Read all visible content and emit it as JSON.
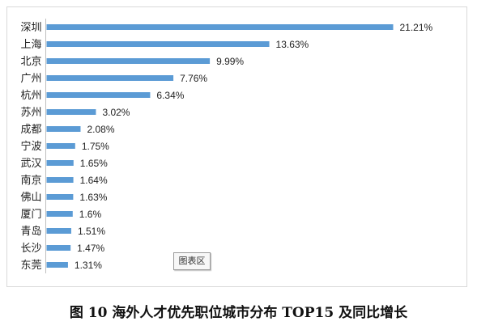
{
  "chart_area_label": "图表区",
  "caption": "图 10   海外人才优先职位城市分布 TOP15 及同比增长",
  "chart_data": {
    "type": "bar",
    "orientation": "horizontal",
    "categories": [
      "深圳",
      "上海",
      "北京",
      "广州",
      "杭州",
      "苏州",
      "成都",
      "宁波",
      "武汉",
      "南京",
      "佛山",
      "厦门",
      "青岛",
      "长沙",
      "东莞"
    ],
    "values": [
      21.21,
      13.63,
      9.99,
      7.76,
      6.34,
      3.02,
      2.08,
      1.75,
      1.65,
      1.64,
      1.63,
      1.6,
      1.51,
      1.47,
      1.31
    ],
    "value_labels": [
      "21.21%",
      "13.63%",
      "9.99%",
      "7.76%",
      "6.34%",
      "3.02%",
      "2.08%",
      "1.75%",
      "1.65%",
      "1.64%",
      "1.63%",
      "1.6%",
      "1.51%",
      "1.47%",
      "1.31%"
    ],
    "bar_color": "#5b9bd5",
    "grid": false,
    "legend": "none"
  }
}
